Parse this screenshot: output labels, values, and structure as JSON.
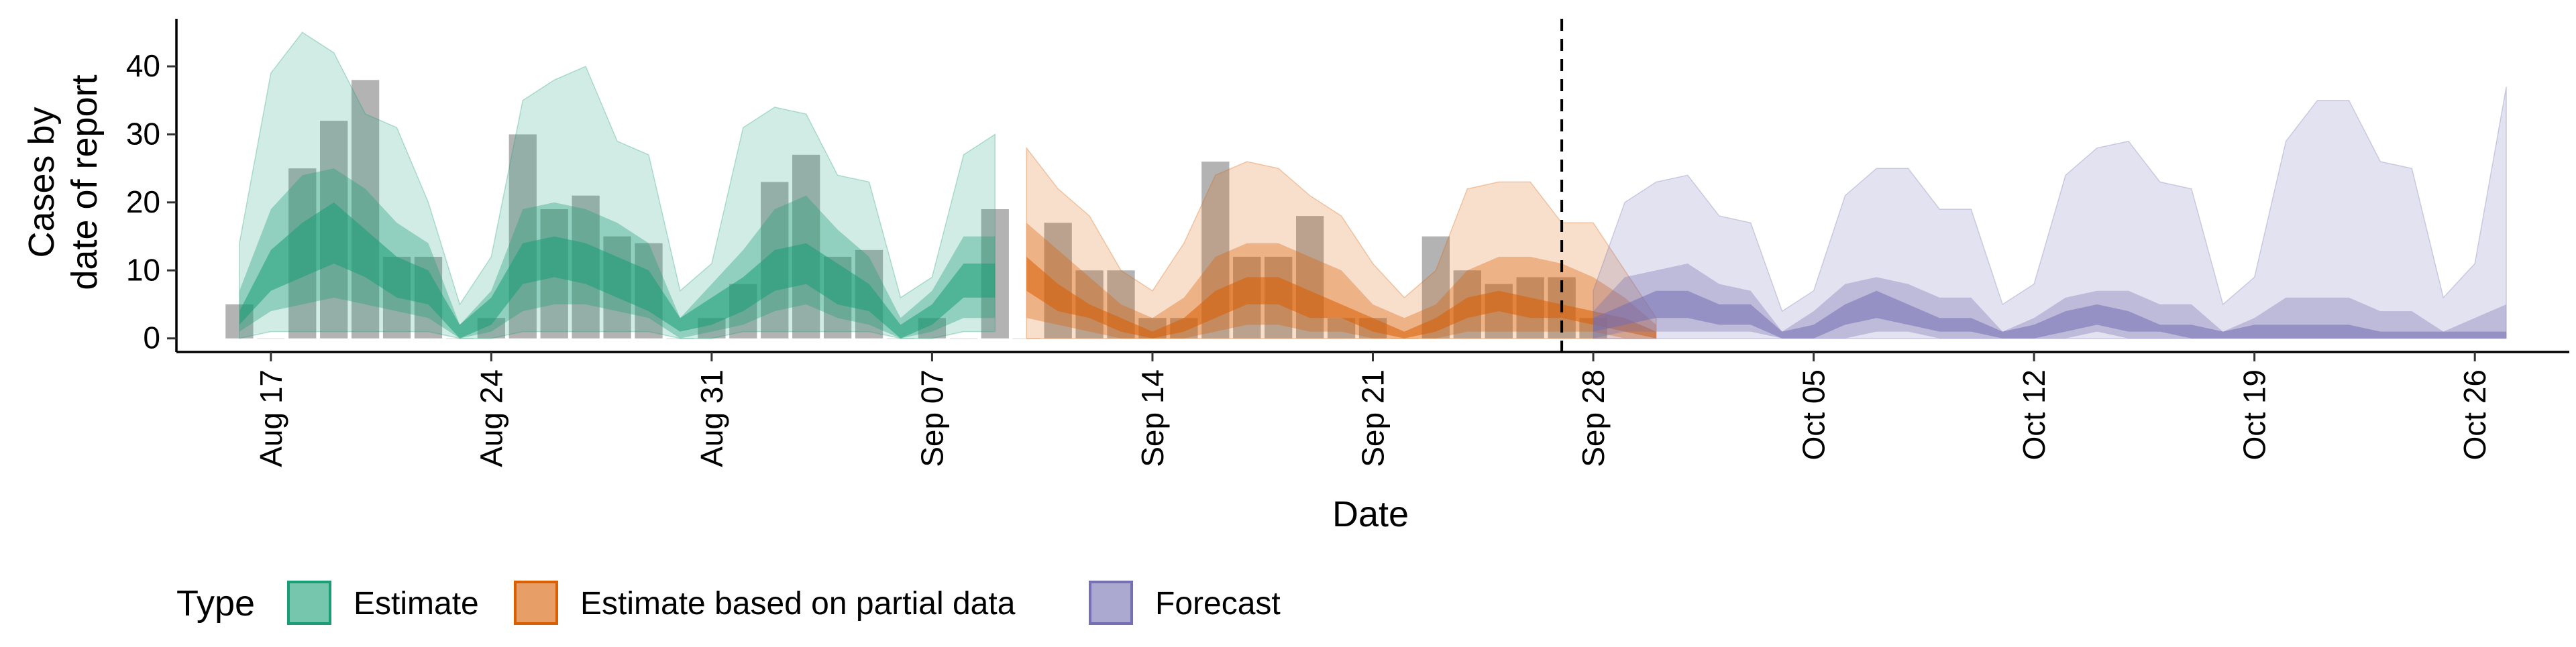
{
  "chart_data": {
    "type": "area",
    "title": "",
    "xlabel": "Date",
    "ylabel": "Cases by date of report",
    "ylabel_lines": [
      "Cases by",
      "date of report"
    ],
    "x_axis": {
      "type": "date",
      "range": [
        "2020-08-14",
        "2020-10-29"
      ],
      "ticks": [
        "2020-08-17",
        "2020-08-24",
        "2020-08-31",
        "2020-09-07",
        "2020-09-14",
        "2020-09-21",
        "2020-09-28",
        "2020-10-05",
        "2020-10-12",
        "2020-10-19",
        "2020-10-26"
      ],
      "tick_labels": [
        "Aug 17",
        "Aug 24",
        "Aug 31",
        "Sep 07",
        "Sep 14",
        "Sep 21",
        "Sep 28",
        "Oct 05",
        "Oct 12",
        "Oct 19",
        "Oct 26"
      ]
    },
    "y_axis": {
      "range": [
        -2,
        47
      ],
      "ticks": [
        0,
        10,
        20,
        30,
        40
      ],
      "tick_labels": [
        "0",
        "10",
        "20",
        "30",
        "40"
      ]
    },
    "grid": false,
    "legend": {
      "position": "bottom",
      "title": "Type",
      "entries": [
        "Estimate",
        "Estimate based on partial data",
        "Forecast"
      ]
    },
    "reference_line": {
      "x": "2020-09-27",
      "style": "dashed"
    },
    "colors": {
      "Estimate": "#1b9e77",
      "Estimate based on partial data": "#d95f02",
      "Forecast": "#7570b3",
      "bars": "#808080"
    },
    "observed_cases": {
      "name": "Cases by date of report",
      "start": "2020-08-16",
      "values": [
        5,
        0,
        25,
        32,
        38,
        12,
        12,
        0,
        3,
        30,
        19,
        21,
        15,
        14,
        0,
        3,
        8,
        23,
        27,
        12,
        13,
        0,
        3,
        0,
        19,
        0,
        17,
        10,
        10,
        3,
        3,
        26,
        12,
        12,
        18,
        3,
        3,
        0,
        15,
        10,
        8,
        9,
        9,
        3
      ]
    },
    "series": [
      {
        "name": "Estimate",
        "start": "2020-08-16",
        "median": [
          3,
          9,
          12,
          15,
          12,
          9,
          7,
          1,
          4,
          11,
          12,
          11,
          9,
          7,
          2,
          4,
          6,
          10,
          11,
          8,
          6,
          1,
          3,
          8,
          8
        ],
        "inner_lower": [
          2,
          7,
          9,
          11,
          9,
          6,
          5,
          0,
          2,
          8,
          9,
          8,
          6,
          4,
          1,
          2,
          4,
          7,
          8,
          5,
          4,
          0,
          2,
          6,
          6
        ],
        "inner_upper": [
          4,
          13,
          17,
          20,
          16,
          12,
          10,
          2,
          6,
          14,
          15,
          14,
          12,
          10,
          3,
          6,
          9,
          13,
          14,
          11,
          8,
          2,
          5,
          11,
          11
        ],
        "mid_lower": [
          1,
          4,
          5,
          6,
          5,
          4,
          3,
          0,
          1,
          4,
          5,
          5,
          4,
          3,
          0,
          1,
          2,
          4,
          5,
          3,
          2,
          0,
          1,
          3,
          3
        ],
        "mid_upper": [
          7,
          19,
          24,
          25,
          22,
          17,
          14,
          2,
          7,
          19,
          20,
          19,
          17,
          14,
          3,
          8,
          13,
          19,
          21,
          16,
          12,
          3,
          7,
          15,
          15
        ],
        "outer_lower": [
          0,
          1,
          1,
          1,
          1,
          1,
          1,
          0,
          0,
          1,
          1,
          1,
          1,
          1,
          0,
          0,
          1,
          1,
          1,
          1,
          1,
          0,
          0,
          1,
          1
        ],
        "outer_upper": [
          14,
          39,
          45,
          42,
          33,
          31,
          20,
          5,
          12,
          35,
          38,
          40,
          29,
          27,
          7,
          11,
          31,
          34,
          33,
          24,
          23,
          6,
          9,
          27,
          30
        ]
      },
      {
        "name": "Estimate based on partial data",
        "start": "2020-09-10",
        "median": [
          9,
          6,
          4,
          2,
          1,
          2,
          5,
          7,
          7,
          5,
          4,
          2,
          1,
          2,
          4,
          5,
          5,
          4,
          3,
          2,
          1
        ],
        "inner_lower": [
          7,
          4,
          3,
          1,
          0,
          1,
          3,
          5,
          5,
          3,
          3,
          1,
          0,
          1,
          3,
          4,
          3,
          3,
          2,
          1,
          0
        ],
        "inner_upper": [
          12,
          8,
          5,
          3,
          1,
          3,
          7,
          9,
          9,
          7,
          5,
          3,
          1,
          3,
          6,
          7,
          6,
          5,
          4,
          3,
          1
        ],
        "mid_lower": [
          3,
          2,
          1,
          0,
          0,
          0,
          1,
          2,
          2,
          1,
          1,
          0,
          0,
          0,
          1,
          1,
          1,
          1,
          1,
          0,
          0
        ],
        "mid_upper": [
          17,
          13,
          9,
          5,
          3,
          6,
          12,
          14,
          14,
          12,
          10,
          5,
          3,
          5,
          10,
          12,
          12,
          11,
          9,
          6,
          2
        ],
        "outer_lower": [
          0,
          0,
          0,
          0,
          0,
          0,
          0,
          0,
          0,
          0,
          0,
          0,
          0,
          0,
          0,
          0,
          0,
          0,
          0,
          0,
          0
        ],
        "outer_upper": [
          28,
          22,
          18,
          10,
          7,
          14,
          24,
          26,
          25,
          21,
          18,
          11,
          6,
          10,
          22,
          23,
          23,
          17,
          17,
          10,
          3
        ]
      },
      {
        "name": "Forecast",
        "start": "2020-09-28",
        "median": [
          2,
          4,
          5,
          5,
          3,
          3,
          0,
          1,
          3,
          5,
          3,
          2,
          2,
          0,
          1,
          2,
          3,
          2,
          1,
          1,
          0,
          1,
          1,
          1,
          1,
          0,
          0,
          0,
          0,
          0
        ],
        "inner_lower": [
          1,
          2,
          3,
          3,
          2,
          2,
          0,
          0,
          2,
          3,
          2,
          1,
          1,
          0,
          0,
          1,
          2,
          1,
          1,
          0,
          0,
          0,
          0,
          0,
          0,
          0,
          0,
          0,
          0,
          0
        ],
        "inner_upper": [
          3,
          5,
          7,
          7,
          5,
          5,
          1,
          2,
          5,
          7,
          5,
          3,
          3,
          1,
          2,
          4,
          5,
          4,
          2,
          2,
          1,
          2,
          2,
          2,
          2,
          1,
          1,
          1,
          1,
          1
        ],
        "mid_lower": [
          0,
          1,
          1,
          1,
          1,
          1,
          0,
          0,
          0,
          1,
          1,
          0,
          0,
          0,
          0,
          0,
          1,
          0,
          0,
          0,
          0,
          0,
          0,
          0,
          0,
          0,
          0,
          0,
          0,
          0
        ],
        "mid_upper": [
          4,
          9,
          10,
          11,
          8,
          7,
          1,
          4,
          8,
          9,
          8,
          6,
          6,
          1,
          3,
          6,
          7,
          7,
          5,
          5,
          1,
          3,
          6,
          6,
          6,
          4,
          4,
          1,
          3,
          5
        ],
        "outer_lower": [
          0,
          0,
          0,
          0,
          0,
          0,
          0,
          0,
          0,
          0,
          0,
          0,
          0,
          0,
          0,
          0,
          0,
          0,
          0,
          0,
          0,
          0,
          0,
          0,
          0,
          0,
          0,
          0,
          0,
          0
        ],
        "outer_upper": [
          7,
          20,
          23,
          24,
          18,
          17,
          4,
          7,
          21,
          25,
          25,
          19,
          19,
          5,
          8,
          24,
          28,
          29,
          23,
          22,
          5,
          9,
          29,
          35,
          35,
          26,
          25,
          6,
          11,
          37
        ]
      }
    ]
  }
}
